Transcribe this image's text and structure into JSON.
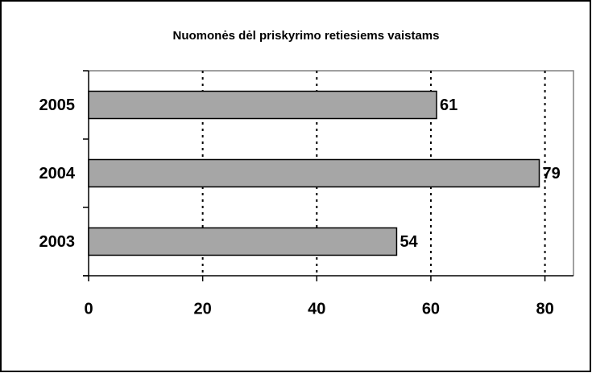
{
  "chart_data": {
    "type": "bar",
    "orientation": "horizontal",
    "title": "Nuomonės dėl priskyrimo retiesiems vaistams",
    "categories": [
      "2005",
      "2004",
      "2003"
    ],
    "values": [
      61,
      79,
      54
    ],
    "color": "#a6a6a6",
    "xlim": [
      0,
      85
    ],
    "xticks": [
      0,
      20,
      40,
      60,
      80
    ],
    "grid": true
  }
}
